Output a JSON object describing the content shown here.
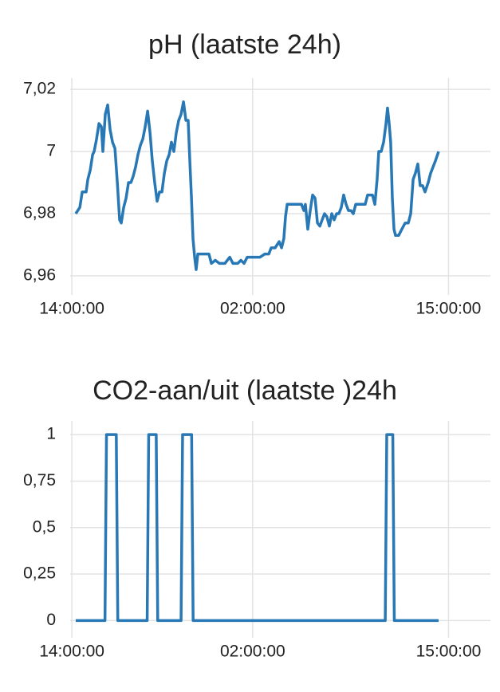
{
  "chart_data": [
    {
      "type": "line",
      "title": "pH (laatste 24h)",
      "color": "#2878b5",
      "grid": true,
      "x": [
        14.26,
        14.53,
        14.69,
        14.95,
        15.06,
        15.22,
        15.38,
        15.48,
        15.64,
        15.8,
        15.96,
        16.06,
        16.22,
        16.38,
        16.54,
        16.7,
        16.86,
        17.02,
        17.17,
        17.28,
        17.44,
        17.6,
        17.76,
        17.92,
        18.07,
        18.23,
        18.39,
        18.55,
        18.71,
        18.87,
        19.03,
        19.19,
        19.34,
        19.5,
        19.66,
        19.82,
        19.98,
        20.14,
        20.3,
        20.46,
        20.61,
        20.77,
        20.93,
        21.09,
        21.25,
        21.41,
        21.57,
        21.72,
        21.83,
        21.94,
        22.04,
        22.15,
        22.25,
        22.36,
        22.57,
        22.78,
        23.1,
        23.26,
        23.52,
        23.79,
        24.16,
        24.48,
        24.69,
        25.01,
        25.22,
        25.43,
        25.64,
        25.9,
        26.17,
        26.49,
        26.8,
        27.07,
        27.23,
        27.49,
        27.76,
        27.92,
        28.07,
        28.18,
        28.29,
        28.55,
        28.92,
        29.24,
        29.4,
        29.5,
        29.66,
        29.82,
        29.98,
        30.14,
        30.3,
        30.46,
        30.61,
        30.77,
        30.93,
        31.09,
        31.25,
        31.41,
        31.57,
        31.72,
        31.88,
        32.04,
        32.2,
        32.36,
        32.52,
        32.68,
        32.84,
        32.99,
        33.15,
        33.47,
        33.63,
        33.79,
        33.95,
        34.11,
        34.26,
        34.37,
        34.53,
        34.69,
        34.85,
        34.95,
        35.06,
        35.16,
        35.27,
        35.38,
        35.48,
        35.69,
        35.9,
        36.12,
        36.33,
        36.49,
        36.65,
        36.8,
        36.96,
        37.12,
        37.28,
        37.44,
        37.65,
        37.81,
        37.97,
        38.13,
        38.34
      ],
      "values": [
        6.98,
        6.982,
        6.987,
        6.987,
        6.991,
        6.994,
        6.999,
        7.0,
        7.004,
        7.009,
        7.008,
        7.0,
        7.012,
        7.015,
        7.007,
        7.003,
        7.001,
        6.99,
        6.978,
        6.977,
        6.982,
        6.985,
        6.99,
        6.99,
        6.992,
        6.995,
        6.999,
        7.002,
        7.004,
        7.008,
        7.013,
        7.006,
        6.997,
        6.99,
        6.984,
        6.987,
        6.987,
        6.993,
        6.997,
        6.999,
        7.003,
        7.0,
        7.006,
        7.01,
        7.012,
        7.016,
        7.01,
        7.01,
        6.997,
        6.985,
        6.972,
        6.966,
        6.962,
        6.967,
        6.967,
        6.967,
        6.967,
        6.964,
        6.965,
        6.964,
        6.964,
        6.966,
        6.964,
        6.964,
        6.965,
        6.964,
        6.966,
        6.966,
        6.966,
        6.966,
        6.967,
        6.967,
        6.969,
        6.969,
        6.971,
        6.969,
        6.972,
        6.979,
        6.983,
        6.983,
        6.983,
        6.983,
        6.981,
        6.983,
        6.975,
        6.981,
        6.986,
        6.985,
        6.977,
        6.976,
        6.978,
        6.98,
        6.979,
        6.976,
        6.98,
        6.978,
        6.98,
        6.98,
        6.982,
        6.986,
        6.983,
        6.981,
        6.981,
        6.98,
        6.983,
        6.983,
        6.983,
        6.983,
        6.986,
        6.986,
        6.986,
        6.983,
        6.991,
        7.0,
        7.0,
        7.003,
        7.009,
        7.014,
        7.009,
        7.003,
        6.985,
        6.975,
        6.973,
        6.973,
        6.975,
        6.977,
        6.977,
        6.98,
        6.991,
        6.993,
        6.996,
        6.989,
        6.989,
        6.987,
        6.99,
        6.993,
        6.995,
        6.997,
        7.0
      ],
      "xlim": [
        13.89,
        41.78
      ],
      "xticks": [
        {
          "value": 14,
          "label": "14:00:00"
        },
        {
          "value": 26,
          "label": "02:00:00"
        },
        {
          "value": 39,
          "label": "15:00:00"
        }
      ],
      "ylim": [
        6.9564,
        7.0231
      ],
      "yticks": [
        {
          "value": 6.96,
          "label": "6,96"
        },
        {
          "value": 6.98,
          "label": "6,98"
        },
        7,
        {
          "value": 7.02,
          "label": "7,02"
        }
      ]
    },
    {
      "type": "line",
      "title": "CO2-aan/uit (laatste )24h",
      "color": "#2878b5",
      "grid": true,
      "x": [
        14.26,
        16.2,
        16.3,
        16.95,
        17.05,
        19.0,
        19.1,
        19.6,
        19.7,
        21.25,
        21.35,
        21.95,
        22.05,
        34.8,
        34.9,
        35.3,
        35.4,
        38.34
      ],
      "values": [
        0,
        0,
        1,
        1,
        0,
        0,
        1,
        1,
        0,
        0,
        1,
        1,
        0,
        0,
        1,
        1,
        0,
        0
      ],
      "xlim": [
        13.89,
        41.78
      ],
      "xticks": [
        {
          "value": 14,
          "label": "14:00:00"
        },
        {
          "value": 26,
          "label": "02:00:00"
        },
        {
          "value": 39,
          "label": "15:00:00"
        }
      ],
      "ylim": [
        -0.05,
        1.065
      ],
      "yticks": [
        0,
        {
          "value": 0.25,
          "label": "0,25"
        },
        {
          "value": 0.5,
          "label": "0,5"
        },
        {
          "value": 0.75,
          "label": "0,75"
        },
        1
      ]
    }
  ]
}
